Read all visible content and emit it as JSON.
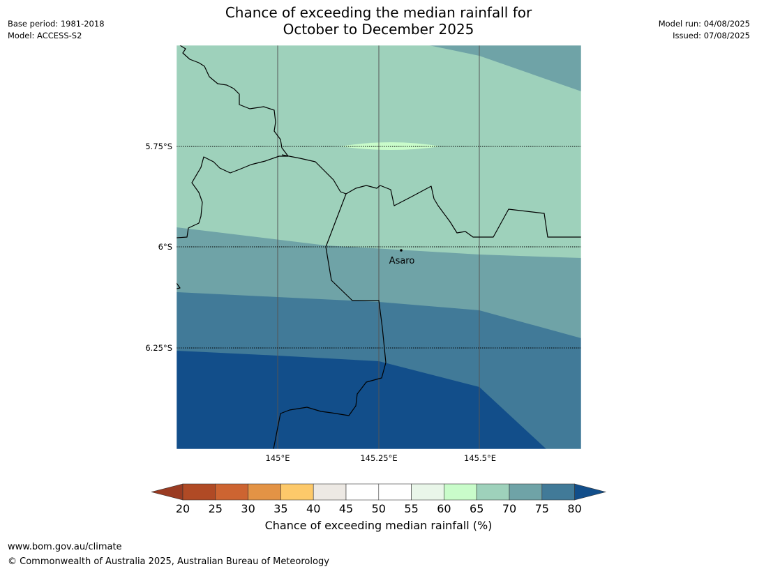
{
  "title_line1": "Chance of exceeding the median rainfall for",
  "title_line2": "October to December 2025",
  "meta": {
    "base_period": "Base period: 1981-2018",
    "model": "Model: ACCESS-S2",
    "model_run": "Model run: 04/08/2025",
    "issued": "Issued: 07/08/2025"
  },
  "map": {
    "lat_labels": [
      "5.75°S",
      "6°S",
      "6.25°S"
    ],
    "lon_labels": [
      "145°E",
      "145.25°E",
      "145.5°E"
    ],
    "place": "Asaro"
  },
  "colorbar": {
    "label": "Chance of exceeding median rainfall (%)",
    "ticks": [
      "20",
      "25",
      "30",
      "35",
      "40",
      "45",
      "50",
      "55",
      "60",
      "65",
      "70",
      "75",
      "80"
    ],
    "low_extend_color": "#9a3b22",
    "high_extend_color": "#124e8a",
    "colors": [
      "#b04a25",
      "#cd6431",
      "#e39345",
      "#fdc96a",
      "#ede9e4",
      "#ffffff",
      "#ffffff",
      "#e9f6e9",
      "#c9fcca",
      "#9ed1bb",
      "#6fa3a7",
      "#417a98"
    ]
  },
  "footer": {
    "url": "www.bom.gov.au/climate",
    "copyright": "© Commonwealth of Australia 2025, Australian Bureau of Meteorology"
  }
}
